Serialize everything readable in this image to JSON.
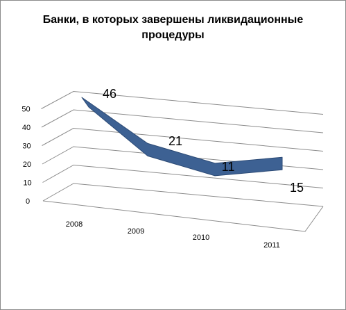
{
  "chart_data": {
    "type": "line",
    "title_line1": "Банки, в которых завершены ликвидационные",
    "title_line2": "процедуры",
    "categories": [
      "2008",
      "2009",
      "2010",
      "2011"
    ],
    "values": [
      46,
      21,
      11,
      15
    ],
    "data_labels": [
      "46",
      "21",
      "11",
      "15"
    ],
    "y_ticks": [
      "0",
      "10",
      "20",
      "30",
      "40",
      "50"
    ],
    "ylim": [
      0,
      50
    ],
    "grid": true,
    "legend": "none",
    "series_color": "#3d6193",
    "series_edge_color": "#2c4a75",
    "grid_color": "#8c8c8c"
  }
}
